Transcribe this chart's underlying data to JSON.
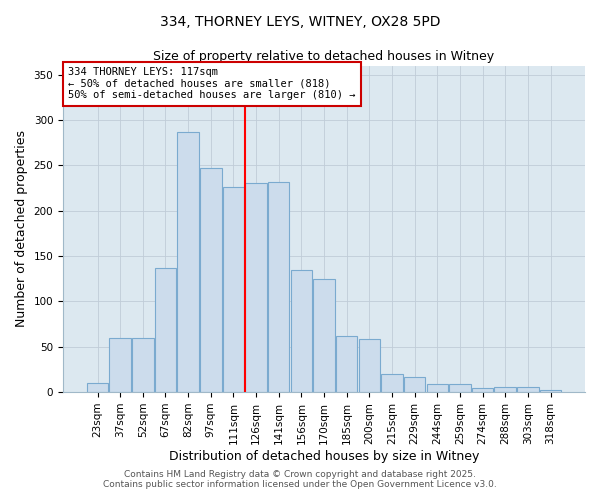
{
  "title": "334, THORNEY LEYS, WITNEY, OX28 5PD",
  "subtitle": "Size of property relative to detached houses in Witney",
  "xlabel": "Distribution of detached houses by size in Witney",
  "ylabel": "Number of detached properties",
  "bar_labels": [
    "23sqm",
    "37sqm",
    "52sqm",
    "67sqm",
    "82sqm",
    "97sqm",
    "111sqm",
    "126sqm",
    "141sqm",
    "156sqm",
    "170sqm",
    "185sqm",
    "200sqm",
    "215sqm",
    "229sqm",
    "244sqm",
    "259sqm",
    "274sqm",
    "288sqm",
    "303sqm",
    "318sqm"
  ],
  "bar_values": [
    10,
    60,
    60,
    137,
    287,
    247,
    226,
    230,
    232,
    135,
    125,
    62,
    58,
    20,
    17,
    9,
    9,
    4,
    6,
    6,
    2
  ],
  "bar_color": "#ccdcec",
  "bar_edge_color": "#7aaacf",
  "vline_color": "red",
  "annotation_title": "334 THORNEY LEYS: 117sqm",
  "annotation_line1": "← 50% of detached houses are smaller (818)",
  "annotation_line2": "50% of semi-detached houses are larger (810) →",
  "annotation_box_facecolor": "white",
  "annotation_box_edgecolor": "#cc0000",
  "ylim": [
    0,
    360
  ],
  "yticks": [
    0,
    50,
    100,
    150,
    200,
    250,
    300,
    350
  ],
  "plot_bg_color": "#dce8f0",
  "fig_bg_color": "white",
  "grid_color": "#c0ccd8",
  "footer1": "Contains HM Land Registry data © Crown copyright and database right 2025.",
  "footer2": "Contains public sector information licensed under the Open Government Licence v3.0.",
  "title_fontsize": 10,
  "subtitle_fontsize": 9,
  "axis_label_fontsize": 9,
  "tick_fontsize": 7.5,
  "annotation_fontsize": 7.5,
  "footer_fontsize": 6.5
}
